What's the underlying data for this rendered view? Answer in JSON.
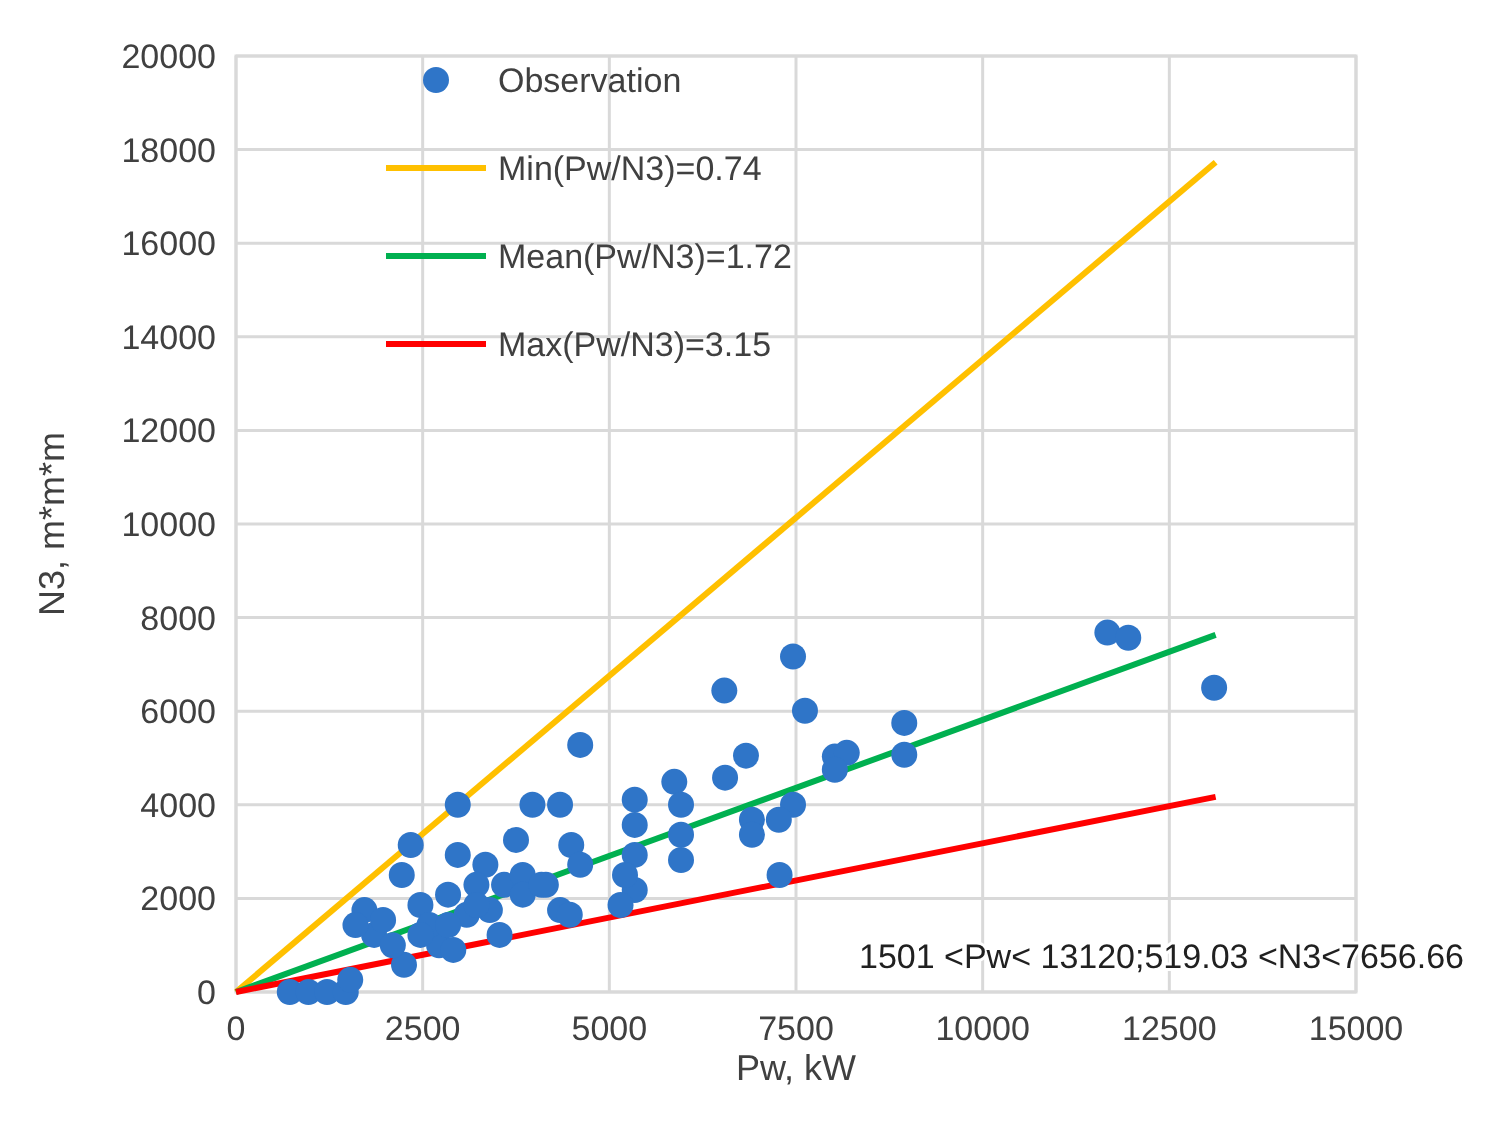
{
  "chart_data": {
    "type": "scatter",
    "xlabel": "Pw, kW",
    "ylabel": "N3, m*m*m",
    "xlim": [
      0,
      15000
    ],
    "xticks": [
      0,
      2500,
      5000,
      7500,
      10000,
      12500,
      15000
    ],
    "ylim": [
      0,
      20000
    ],
    "yticks": [
      0,
      2000,
      4000,
      6000,
      8000,
      10000,
      12000,
      14000,
      16000,
      18000,
      20000
    ],
    "grid": true,
    "legend": "top left",
    "marker": "circle",
    "series": [
      {
        "name": "Observation",
        "color": "#2f75c8",
        "x": [
          13100,
          11670,
          11950,
          7460,
          7620,
          6540,
          6830,
          6550,
          4610,
          5870,
          8950,
          8950,
          8020,
          8180,
          8020,
          7460,
          7270,
          6910,
          6910,
          7280,
          5960,
          5960,
          5960,
          5340,
          5340,
          5340,
          5340,
          5210,
          5150,
          4340,
          3970,
          3750,
          4490,
          4340,
          4470,
          4150,
          4610,
          2970,
          2340,
          2220,
          2250,
          2970,
          3340,
          3530,
          2720,
          2910,
          3590,
          3840,
          1720,
          1850,
          1970,
          2470,
          2840,
          3220,
          2590,
          3090,
          3400,
          1600,
          2100,
          2470,
          2840,
          3220,
          3840,
          4090,
          720,
          970,
          1220,
          1470,
          1530
        ],
        "values": [
          6500,
          7680,
          7570,
          7170,
          6010,
          6440,
          5050,
          4580,
          5280,
          4490,
          5750,
          5070,
          5030,
          5110,
          4750,
          4000,
          3680,
          3680,
          3360,
          2500,
          4000,
          3360,
          2820,
          4110,
          3570,
          2930,
          2180,
          2500,
          1860,
          4000,
          4000,
          3250,
          3140,
          1750,
          1650,
          2290,
          2720,
          4000,
          3140,
          2500,
          580,
          2930,
          2720,
          1220,
          1000,
          900,
          2290,
          2500,
          1750,
          1220,
          1540,
          1860,
          2080,
          2290,
          1430,
          1650,
          1750,
          1430,
          1000,
          1220,
          1430,
          1860,
          2080,
          2290,
          0,
          0,
          0,
          0,
          260
        ]
      },
      {
        "name": "Min(Pw/N3)=0.74",
        "type": "line",
        "color": "#ffc000",
        "marker": "none",
        "x": [
          0,
          13120
        ],
        "values": [
          0,
          17730
        ]
      },
      {
        "name": "Mean(Pw/N3)=1.72",
        "type": "line",
        "color": "#00b050",
        "marker": "none",
        "x": [
          0,
          13120
        ],
        "values": [
          0,
          7630
        ]
      },
      {
        "name": "Max(Pw/N3)=3.15",
        "type": "line",
        "color": "#ff0000",
        "marker": "none",
        "x": [
          0,
          13120
        ],
        "values": [
          0,
          4170
        ]
      }
    ],
    "annotations": [
      "1501 <Pw< 13120;519.03  <N3<7656.66"
    ]
  }
}
